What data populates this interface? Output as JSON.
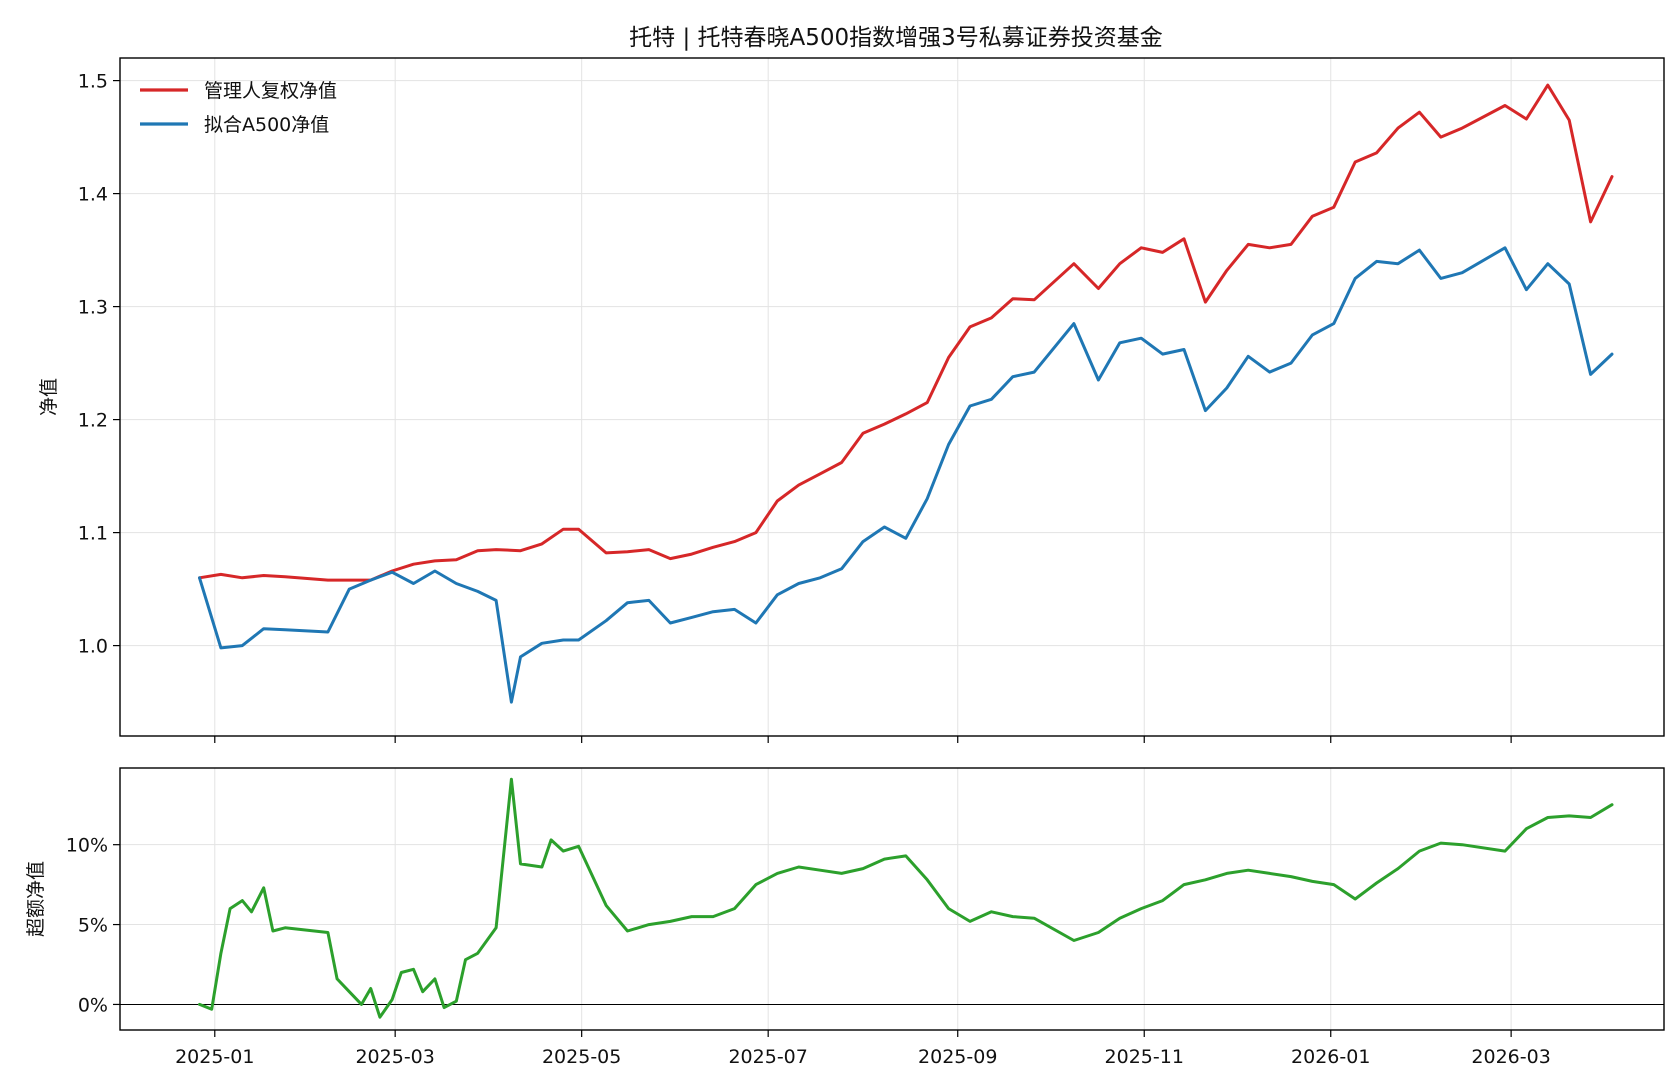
{
  "chart_data": [
    {
      "type": "line",
      "title": "托特 | 托特春晓A500指数增强3号私募证券投资基金",
      "ylabel": "净值",
      "xlabel": "",
      "ylim": [
        0.92,
        1.52
      ],
      "xlim": [
        "2024-12-01",
        "2026-04-20"
      ],
      "yticks": [
        1.0,
        1.1,
        1.2,
        1.3,
        1.4,
        1.5
      ],
      "ytick_labels": [
        "1.0",
        "1.1",
        "1.2",
        "1.3",
        "1.4",
        "1.5"
      ],
      "grid": true,
      "legend": "top-left",
      "series": [
        {
          "name": "管理人复权净值",
          "color": "#d62728",
          "points": [
            [
              "2024-12-27",
              1.06
            ],
            [
              "2025-01-03",
              1.063
            ],
            [
              "2025-01-10",
              1.06
            ],
            [
              "2025-01-17",
              1.062
            ],
            [
              "2025-01-24",
              1.061
            ],
            [
              "2025-02-07",
              1.058
            ],
            [
              "2025-02-14",
              1.058
            ],
            [
              "2025-02-21",
              1.058
            ],
            [
              "2025-02-28",
              1.066
            ],
            [
              "2025-03-07",
              1.072
            ],
            [
              "2025-03-14",
              1.075
            ],
            [
              "2025-03-21",
              1.076
            ],
            [
              "2025-03-28",
              1.084
            ],
            [
              "2025-04-03",
              1.085
            ],
            [
              "2025-04-11",
              1.084
            ],
            [
              "2025-04-18",
              1.09
            ],
            [
              "2025-04-25",
              1.103
            ],
            [
              "2025-04-30",
              1.103
            ],
            [
              "2025-05-09",
              1.082
            ],
            [
              "2025-05-16",
              1.083
            ],
            [
              "2025-05-23",
              1.085
            ],
            [
              "2025-05-30",
              1.077
            ],
            [
              "2025-06-06",
              1.081
            ],
            [
              "2025-06-13",
              1.087
            ],
            [
              "2025-06-20",
              1.092
            ],
            [
              "2025-06-27",
              1.1
            ],
            [
              "2025-07-04",
              1.128
            ],
            [
              "2025-07-11",
              1.142
            ],
            [
              "2025-07-18",
              1.152
            ],
            [
              "2025-07-25",
              1.162
            ],
            [
              "2025-08-01",
              1.188
            ],
            [
              "2025-08-08",
              1.196
            ],
            [
              "2025-08-15",
              1.205
            ],
            [
              "2025-08-22",
              1.215
            ],
            [
              "2025-08-29",
              1.255
            ],
            [
              "2025-09-05",
              1.282
            ],
            [
              "2025-09-12",
              1.29
            ],
            [
              "2025-09-19",
              1.307
            ],
            [
              "2025-09-26",
              1.306
            ],
            [
              "2025-10-09",
              1.338
            ],
            [
              "2025-10-17",
              1.316
            ],
            [
              "2025-10-24",
              1.338
            ],
            [
              "2025-10-31",
              1.352
            ],
            [
              "2025-11-07",
              1.348
            ],
            [
              "2025-11-14",
              1.36
            ],
            [
              "2025-11-21",
              1.304
            ],
            [
              "2025-11-28",
              1.332
            ],
            [
              "2025-12-05",
              1.355
            ],
            [
              "2025-12-12",
              1.352
            ],
            [
              "2025-12-19",
              1.355
            ],
            [
              "2025-12-26",
              1.38
            ],
            [
              "2026-01-02",
              1.388
            ],
            [
              "2026-01-09",
              1.428
            ],
            [
              "2026-01-16",
              1.436
            ],
            [
              "2026-01-23",
              1.458
            ],
            [
              "2026-01-30",
              1.472
            ],
            [
              "2026-02-06",
              1.45
            ],
            [
              "2026-02-13",
              1.458
            ],
            [
              "2026-02-27",
              1.478
            ],
            [
              "2026-03-06",
              1.466
            ],
            [
              "2026-03-13",
              1.496
            ],
            [
              "2026-03-20",
              1.465
            ],
            [
              "2026-03-27",
              1.375
            ],
            [
              "2026-04-03",
              1.415
            ]
          ]
        },
        {
          "name": "拟合A500净值",
          "color": "#1f77b4",
          "points": [
            [
              "2024-12-27",
              1.06
            ],
            [
              "2025-01-03",
              0.998
            ],
            [
              "2025-01-10",
              1.0
            ],
            [
              "2025-01-17",
              1.015
            ],
            [
              "2025-01-24",
              1.014
            ],
            [
              "2025-02-07",
              1.012
            ],
            [
              "2025-02-14",
              1.05
            ],
            [
              "2025-02-21",
              1.058
            ],
            [
              "2025-02-28",
              1.065
            ],
            [
              "2025-03-07",
              1.055
            ],
            [
              "2025-03-14",
              1.066
            ],
            [
              "2025-03-21",
              1.055
            ],
            [
              "2025-03-28",
              1.048
            ],
            [
              "2025-04-03",
              1.04
            ],
            [
              "2025-04-08",
              0.95
            ],
            [
              "2025-04-11",
              0.99
            ],
            [
              "2025-04-18",
              1.002
            ],
            [
              "2025-04-25",
              1.005
            ],
            [
              "2025-04-30",
              1.005
            ],
            [
              "2025-05-09",
              1.022
            ],
            [
              "2025-05-16",
              1.038
            ],
            [
              "2025-05-23",
              1.04
            ],
            [
              "2025-05-30",
              1.02
            ],
            [
              "2025-06-06",
              1.025
            ],
            [
              "2025-06-13",
              1.03
            ],
            [
              "2025-06-20",
              1.032
            ],
            [
              "2025-06-27",
              1.02
            ],
            [
              "2025-07-04",
              1.045
            ],
            [
              "2025-07-11",
              1.055
            ],
            [
              "2025-07-18",
              1.06
            ],
            [
              "2025-07-25",
              1.068
            ],
            [
              "2025-08-01",
              1.092
            ],
            [
              "2025-08-08",
              1.105
            ],
            [
              "2025-08-15",
              1.095
            ],
            [
              "2025-08-22",
              1.13
            ],
            [
              "2025-08-29",
              1.178
            ],
            [
              "2025-09-05",
              1.212
            ],
            [
              "2025-09-12",
              1.218
            ],
            [
              "2025-09-19",
              1.238
            ],
            [
              "2025-09-26",
              1.242
            ],
            [
              "2025-10-09",
              1.285
            ],
            [
              "2025-10-17",
              1.235
            ],
            [
              "2025-10-24",
              1.268
            ],
            [
              "2025-10-31",
              1.272
            ],
            [
              "2025-11-07",
              1.258
            ],
            [
              "2025-11-14",
              1.262
            ],
            [
              "2025-11-21",
              1.208
            ],
            [
              "2025-11-28",
              1.228
            ],
            [
              "2025-12-05",
              1.256
            ],
            [
              "2025-12-12",
              1.242
            ],
            [
              "2025-12-19",
              1.25
            ],
            [
              "2025-12-26",
              1.275
            ],
            [
              "2026-01-02",
              1.285
            ],
            [
              "2026-01-09",
              1.325
            ],
            [
              "2026-01-16",
              1.34
            ],
            [
              "2026-01-23",
              1.338
            ],
            [
              "2026-01-30",
              1.35
            ],
            [
              "2026-02-06",
              1.325
            ],
            [
              "2026-02-13",
              1.33
            ],
            [
              "2026-02-27",
              1.352
            ],
            [
              "2026-03-06",
              1.315
            ],
            [
              "2026-03-13",
              1.338
            ],
            [
              "2026-03-20",
              1.32
            ],
            [
              "2026-03-27",
              1.24
            ],
            [
              "2026-04-03",
              1.258
            ]
          ]
        }
      ]
    },
    {
      "type": "line",
      "title": "",
      "ylabel": "超额净值",
      "xlabel": "",
      "ylim": [
        -1.6,
        14.8
      ],
      "xlim": [
        "2024-12-01",
        "2026-04-20"
      ],
      "yticks": [
        0,
        5,
        10
      ],
      "ytick_labels": [
        "0%",
        "5%",
        "10%"
      ],
      "xtick_dates": [
        "2025-01-01",
        "2025-03-01",
        "2025-05-01",
        "2025-07-01",
        "2025-09-01",
        "2025-11-01",
        "2026-01-01",
        "2026-03-01"
      ],
      "xtick_labels": [
        "2025-01",
        "2025-03",
        "2025-05",
        "2025-07",
        "2025-09",
        "2025-11",
        "2026-01",
        "2026-03"
      ],
      "grid": true,
      "zero_line": true,
      "series": [
        {
          "name": "",
          "color": "#2ca02c",
          "points": [
            [
              "2024-12-27",
              0.0
            ],
            [
              "2024-12-31",
              -0.3
            ],
            [
              "2025-01-03",
              3.2
            ],
            [
              "2025-01-06",
              6.0
            ],
            [
              "2025-01-10",
              6.5
            ],
            [
              "2025-01-13",
              5.8
            ],
            [
              "2025-01-17",
              7.3
            ],
            [
              "2025-01-20",
              4.6
            ],
            [
              "2025-01-24",
              4.8
            ],
            [
              "2025-02-07",
              4.5
            ],
            [
              "2025-02-10",
              1.6
            ],
            [
              "2025-02-14",
              0.8
            ],
            [
              "2025-02-18",
              0.0
            ],
            [
              "2025-02-21",
              1.0
            ],
            [
              "2025-02-24",
              -0.8
            ],
            [
              "2025-02-28",
              0.3
            ],
            [
              "2025-03-03",
              2.0
            ],
            [
              "2025-03-07",
              2.2
            ],
            [
              "2025-03-10",
              0.8
            ],
            [
              "2025-03-14",
              1.6
            ],
            [
              "2025-03-17",
              -0.2
            ],
            [
              "2025-03-21",
              0.2
            ],
            [
              "2025-03-24",
              2.8
            ],
            [
              "2025-03-28",
              3.2
            ],
            [
              "2025-04-03",
              4.8
            ],
            [
              "2025-04-08",
              14.1
            ],
            [
              "2025-04-11",
              8.8
            ],
            [
              "2025-04-18",
              8.6
            ],
            [
              "2025-04-21",
              10.3
            ],
            [
              "2025-04-25",
              9.6
            ],
            [
              "2025-04-30",
              9.9
            ],
            [
              "2025-05-09",
              6.2
            ],
            [
              "2025-05-16",
              4.6
            ],
            [
              "2025-05-23",
              5.0
            ],
            [
              "2025-05-30",
              5.2
            ],
            [
              "2025-06-06",
              5.5
            ],
            [
              "2025-06-13",
              5.5
            ],
            [
              "2025-06-20",
              6.0
            ],
            [
              "2025-06-27",
              7.5
            ],
            [
              "2025-07-04",
              8.2
            ],
            [
              "2025-07-11",
              8.6
            ],
            [
              "2025-07-18",
              8.4
            ],
            [
              "2025-07-25",
              8.2
            ],
            [
              "2025-08-01",
              8.5
            ],
            [
              "2025-08-08",
              9.1
            ],
            [
              "2025-08-15",
              9.3
            ],
            [
              "2025-08-22",
              7.8
            ],
            [
              "2025-08-29",
              6.0
            ],
            [
              "2025-09-05",
              5.2
            ],
            [
              "2025-09-12",
              5.8
            ],
            [
              "2025-09-19",
              5.5
            ],
            [
              "2025-09-26",
              5.4
            ],
            [
              "2025-10-09",
              4.0
            ],
            [
              "2025-10-17",
              4.5
            ],
            [
              "2025-10-24",
              5.4
            ],
            [
              "2025-10-31",
              6.0
            ],
            [
              "2025-11-07",
              6.5
            ],
            [
              "2025-11-14",
              7.5
            ],
            [
              "2025-11-21",
              7.8
            ],
            [
              "2025-11-28",
              8.2
            ],
            [
              "2025-12-05",
              8.4
            ],
            [
              "2025-12-12",
              8.2
            ],
            [
              "2025-12-19",
              8.0
            ],
            [
              "2025-12-26",
              7.7
            ],
            [
              "2026-01-02",
              7.5
            ],
            [
              "2026-01-09",
              6.6
            ],
            [
              "2026-01-16",
              7.6
            ],
            [
              "2026-01-23",
              8.5
            ],
            [
              "2026-01-30",
              9.6
            ],
            [
              "2026-02-06",
              10.1
            ],
            [
              "2026-02-13",
              10.0
            ],
            [
              "2026-02-27",
              9.6
            ],
            [
              "2026-03-06",
              11.0
            ],
            [
              "2026-03-13",
              11.7
            ],
            [
              "2026-03-20",
              11.8
            ],
            [
              "2026-03-27",
              11.7
            ],
            [
              "2026-04-03",
              12.5
            ]
          ]
        }
      ]
    }
  ]
}
